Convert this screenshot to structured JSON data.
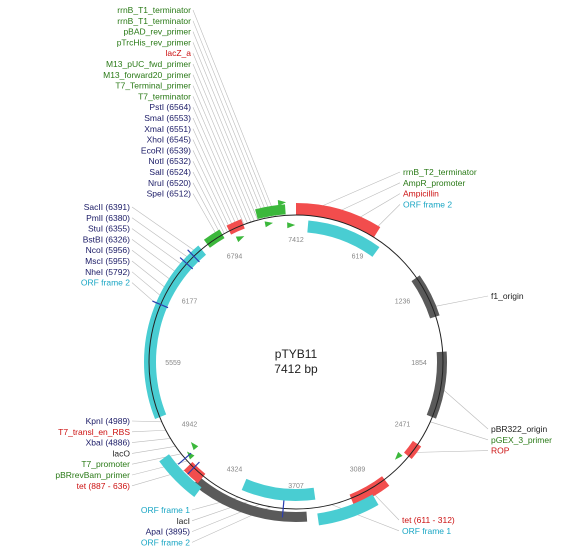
{
  "plasmid": {
    "name": "pTYB11",
    "size_label": "7412 bp",
    "total_bp": 7412
  },
  "colors": {
    "backbone": "#222222",
    "leader": "#bbbbbb",
    "label_feature": "#2a7a17",
    "label_site": "#1a1a66",
    "label_red": "#cc1111",
    "label_orf": "#1aa6c4",
    "label_default": "#222222",
    "red": "#f24d4d",
    "green": "#3cb83c",
    "cyan": "#49cdd2",
    "gray": "#5a5a5a",
    "blue": "#2b3fb0"
  },
  "tick_labels": [
    "7412",
    "619",
    "1236",
    "1854",
    "2471",
    "3089",
    "3707",
    "4324",
    "4942",
    "5559",
    "6177",
    "6794"
  ],
  "labels_top": [
    {
      "text": "rrnB_T1_terminator",
      "kind": "feature"
    },
    {
      "text": "rrnB_T1_terminator",
      "kind": "feature"
    },
    {
      "text": "pBAD_rev_primer",
      "kind": "feature"
    },
    {
      "text": "pTrcHis_rev_primer",
      "kind": "feature"
    },
    {
      "text": "lacZ_a",
      "kind": "red"
    },
    {
      "text": "M13_pUC_fwd_primer",
      "kind": "feature"
    },
    {
      "text": "M13_forward20_primer",
      "kind": "feature"
    },
    {
      "text": "T7_Terminal_primer",
      "kind": "feature"
    },
    {
      "text": "T7_terminator",
      "kind": "feature"
    },
    {
      "text": "PstI (6564)",
      "kind": "site"
    },
    {
      "text": "SmaI (6553)",
      "kind": "site"
    },
    {
      "text": "XmaI (6551)",
      "kind": "site"
    },
    {
      "text": "XhoI (6545)",
      "kind": "site"
    },
    {
      "text": "EcoRI (6539)",
      "kind": "site"
    },
    {
      "text": "NotI (6532)",
      "kind": "site"
    },
    {
      "text": "SalI (6524)",
      "kind": "site"
    },
    {
      "text": "NruI (6520)",
      "kind": "site"
    },
    {
      "text": "SpeI (6512)",
      "kind": "site"
    }
  ],
  "labels_left_mid": [
    {
      "text": "SacII (6391)",
      "kind": "site"
    },
    {
      "text": "PmlI (6380)",
      "kind": "site"
    },
    {
      "text": "StuI (6355)",
      "kind": "site"
    },
    {
      "text": "BstBI (6326)",
      "kind": "site"
    },
    {
      "text": "NcoI (5956)",
      "kind": "site"
    },
    {
      "text": "MscI (5955)",
      "kind": "site"
    },
    {
      "text": "NheI (5792)",
      "kind": "site"
    },
    {
      "text": "ORF frame 2",
      "kind": "orf"
    }
  ],
  "labels_left_bottom": [
    {
      "text": "KpnI (4989)",
      "kind": "site"
    },
    {
      "text": "T7_transl_en_RBS",
      "kind": "red"
    },
    {
      "text": "XbaI (4886)",
      "kind": "site"
    },
    {
      "text": "lacO",
      "kind": "default"
    },
    {
      "text": "T7_promoter",
      "kind": "feature"
    },
    {
      "text": "pBRrevBam_primer",
      "kind": "feature"
    },
    {
      "text": "tet (887 - 636)",
      "kind": "red"
    }
  ],
  "labels_bottom_left": [
    {
      "text": "ORF frame 1",
      "kind": "orf"
    },
    {
      "text": "lacI",
      "kind": "default"
    },
    {
      "text": "ApaI (3895)",
      "kind": "site"
    },
    {
      "text": "ORF frame 2",
      "kind": "orf"
    }
  ],
  "labels_right_top": [
    {
      "text": "rrnB_T2_terminator",
      "kind": "feature"
    },
    {
      "text": "AmpR_promoter",
      "kind": "feature"
    },
    {
      "text": "Ampicillin",
      "kind": "red"
    },
    {
      "text": "ORF frame 2",
      "kind": "orf"
    }
  ],
  "labels_right_mid": [
    {
      "text": "f1_origin",
      "kind": "default"
    }
  ],
  "labels_right_bottom": [
    {
      "text": "pBR322_origin",
      "kind": "default"
    },
    {
      "text": "pGEX_3_primer",
      "kind": "feature"
    },
    {
      "text": "ROP",
      "kind": "red"
    }
  ],
  "labels_bottom_right": [
    {
      "text": "tet (611 - 312)",
      "kind": "red"
    },
    {
      "text": "ORF frame 1",
      "kind": "orf"
    }
  ]
}
